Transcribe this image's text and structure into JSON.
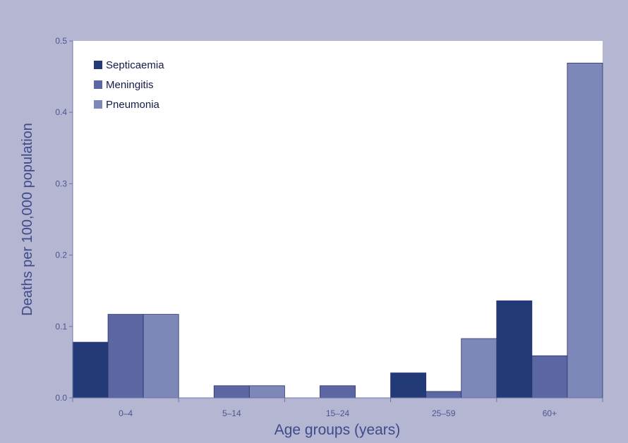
{
  "chart_data": {
    "type": "bar",
    "title": "",
    "xlabel": "Age groups (years)",
    "ylabel": "Deaths per 100,000 population",
    "ylim": [
      0,
      0.5
    ],
    "yticks": [
      "0.0",
      "0.1",
      "0.2",
      "0.3",
      "0.4",
      "0.5"
    ],
    "categories": [
      "0–4",
      "5–14",
      "15–24",
      "25–59",
      "60+"
    ],
    "series": [
      {
        "name": "Septicaemia",
        "color": "#233a78",
        "values": [
          0.078,
          0.0,
          0.0,
          0.035,
          0.136
        ]
      },
      {
        "name": "Meningitis",
        "color": "#5b66a3",
        "values": [
          0.117,
          0.017,
          0.017,
          0.009,
          0.059
        ]
      },
      {
        "name": "Pneumonia",
        "color": "#7e88b8",
        "values": [
          0.117,
          0.017,
          0.0,
          0.083,
          0.469
        ]
      }
    ],
    "legend_position": "top-left",
    "grid": false,
    "colors": {
      "background": "#b4b6d2",
      "plot_area": "#ffffff",
      "axis_text": "#3f4a8a"
    }
  }
}
